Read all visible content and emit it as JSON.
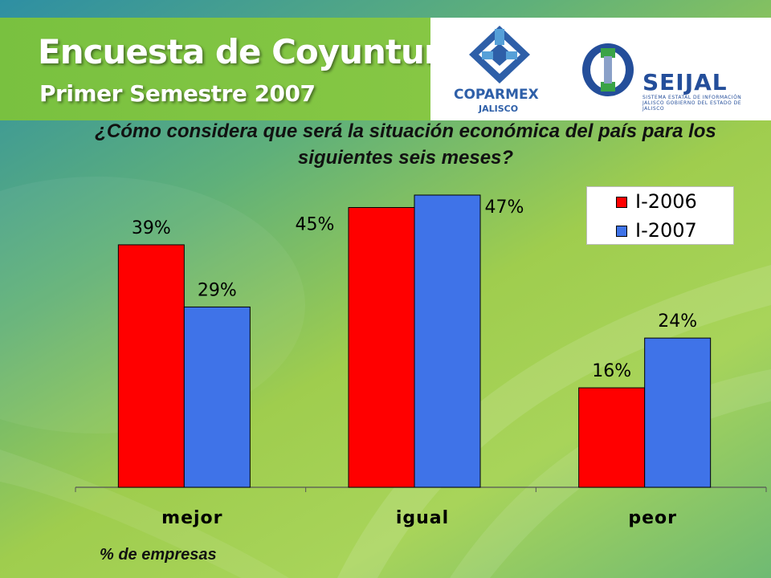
{
  "header": {
    "title": "Encuesta de Coyuntura",
    "subtitle": "Primer Semestre 2007"
  },
  "logos": {
    "coparmex": {
      "name": "COPARMEX",
      "sub": "JALISCO",
      "icon": "coparmex-logo-icon"
    },
    "seijal": {
      "name": "SEIJAL",
      "sub": "SISTEMA ESTATAL DE INFORMACIÓN JALISCO GOBIERNO DEL ESTADO DE JALISCO",
      "icon": "seijal-logo-icon"
    }
  },
  "chart_data": {
    "type": "bar",
    "title": "¿Cómo considera que será la situación económica del país para los siguientes seis meses?",
    "xlabel": "",
    "ylabel": "",
    "categories": [
      "mejor",
      "igual",
      "peor"
    ],
    "series": [
      {
        "name": "I-2006",
        "color": "#ff0000",
        "values": [
          39,
          45,
          16
        ],
        "labels": [
          "39%",
          "45%",
          "16%"
        ]
      },
      {
        "name": "I-2007",
        "color": "#3f73e8",
        "values": [
          29,
          47,
          24
        ],
        "labels": [
          "29%",
          "47%",
          "24%"
        ]
      }
    ],
    "ylim": [
      0,
      47
    ],
    "grid": false,
    "legend": "top-right",
    "note": "% de empresas"
  }
}
